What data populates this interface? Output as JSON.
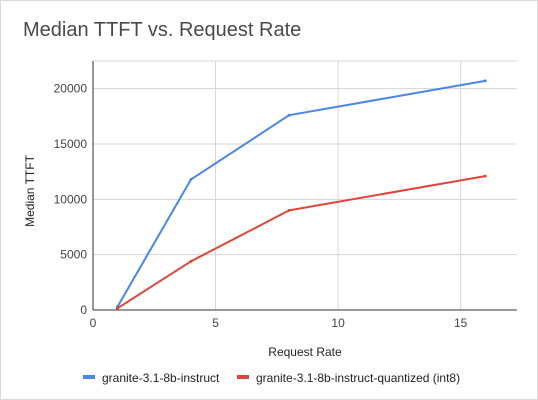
{
  "chart_data": {
    "type": "line",
    "title": "Median TTFT vs. Request Rate",
    "xlabel": "Request Rate",
    "ylabel": "Median TTFT",
    "xlim": [
      0,
      17.3
    ],
    "ylim": [
      0,
      22500
    ],
    "xticks": [
      0,
      5,
      10,
      15
    ],
    "yticks": [
      0,
      5000,
      10000,
      15000,
      20000
    ],
    "xtick_labels": [
      "0",
      "5",
      "10",
      "15"
    ],
    "ytick_labels": [
      "0",
      "5000",
      "10000",
      "15000",
      "20000"
    ],
    "grid": true,
    "legend_position": "bottom",
    "series": [
      {
        "name": "granite-3.1-8b-instruct",
        "color": "#4a86e8",
        "points": [
          [
            1,
            300
          ],
          [
            4,
            11800
          ],
          [
            8,
            17600
          ],
          [
            16,
            20700
          ]
        ]
      },
      {
        "name": "granite-3.1-8b-instruct-quantized (int8)",
        "color": "#e0453b",
        "points": [
          [
            1,
            150
          ],
          [
            4,
            4400
          ],
          [
            8,
            9000
          ],
          [
            16,
            12100
          ]
        ]
      }
    ]
  }
}
